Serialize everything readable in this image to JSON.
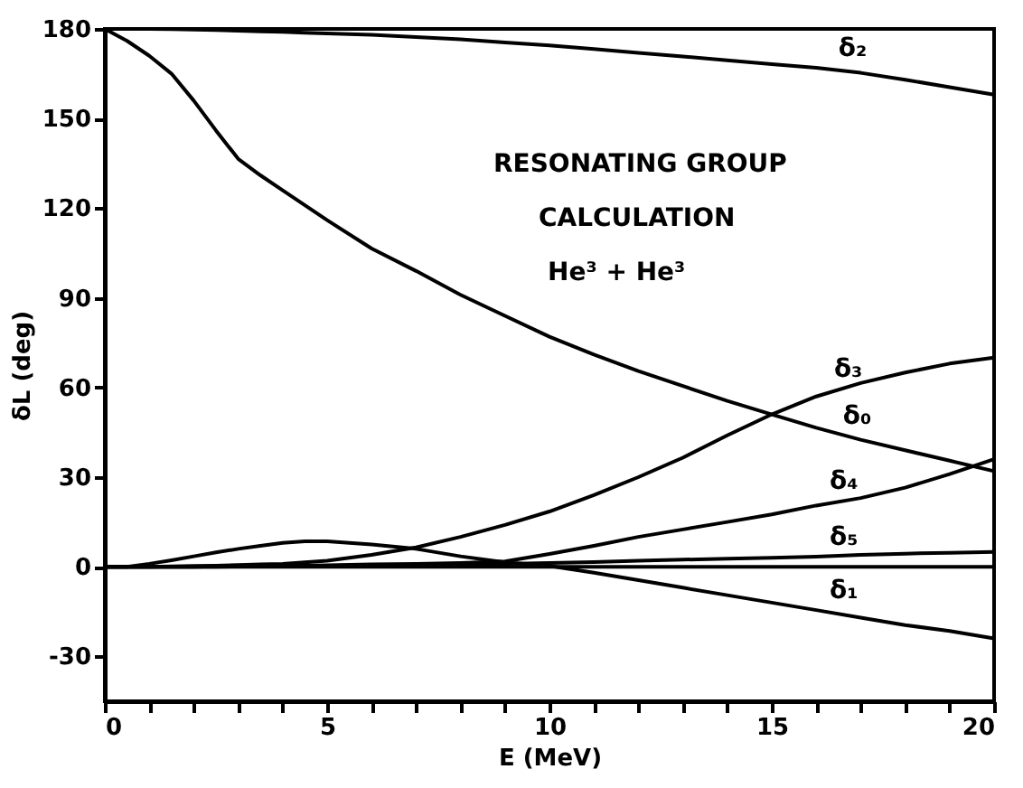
{
  "chart_data": {
    "type": "line",
    "xlabel": "E (MeV)",
    "ylabel": "δL (deg)",
    "annotations": [
      "RESONATING GROUP",
      "CALCULATION",
      "He³ + He³"
    ],
    "x": [
      0,
      0.5,
      1,
      1.5,
      2,
      2.5,
      3,
      3.5,
      4,
      4.5,
      5,
      6,
      7,
      8,
      9,
      10,
      11,
      12,
      13,
      14,
      15,
      16,
      17,
      18,
      19,
      20
    ],
    "series": [
      {
        "name": "δ₂",
        "color": "#000000",
        "values": [
          180,
          180,
          180,
          179.9,
          179.8,
          179.6,
          179.4,
          179.2,
          179,
          178.7,
          178.5,
          178,
          177.3,
          176.5,
          175.5,
          174.5,
          173.3,
          172,
          170.8,
          169.5,
          168.2,
          167,
          165.3,
          163,
          160.5,
          158
        ]
      },
      {
        "name": "δ₀",
        "color": "#000000",
        "values": [
          180,
          176,
          171,
          165,
          156,
          146,
          136.5,
          131,
          126,
          121,
          116,
          106.5,
          99,
          91,
          84,
          77,
          71,
          65.5,
          60.5,
          55.5,
          51,
          46.5,
          42.5,
          39,
          35.5,
          32
        ]
      },
      {
        "name": "δ₃",
        "color": "#000000",
        "values": [
          0,
          0,
          0,
          0.1,
          0.3,
          0.4,
          0.6,
          0.8,
          1,
          1.5,
          2,
          4,
          6.5,
          10,
          14,
          18.5,
          24,
          30,
          36.5,
          44,
          51,
          57,
          61.5,
          65,
          68,
          70
        ]
      },
      {
        "name": "δ₄",
        "color": "#000000",
        "values": [
          0,
          0,
          0,
          0,
          0,
          0.1,
          0.2,
          0.2,
          0.3,
          0.4,
          0.5,
          0.8,
          1,
          1.3,
          1.8,
          4.3,
          7,
          10,
          12.5,
          15,
          17.5,
          20.5,
          23,
          26.5,
          31,
          36
        ]
      },
      {
        "name": "δ₅",
        "color": "#000000",
        "values": [
          0,
          0,
          0,
          0,
          0,
          0,
          0.1,
          0.1,
          0.1,
          0.2,
          0.2,
          0.3,
          0.5,
          0.7,
          1,
          1.3,
          1.6,
          2,
          2.4,
          2.7,
          3,
          3.4,
          4,
          4.4,
          4.7,
          5
        ]
      },
      {
        "name": "δ₁",
        "color": "#000000",
        "values": [
          0,
          0,
          1,
          2.2,
          3.5,
          4.8,
          6,
          7,
          8,
          8.5,
          8.5,
          7.5,
          6,
          3.5,
          1.5,
          0.3,
          -2,
          -4.5,
          -7,
          -9.5,
          -12,
          -14.5,
          -17,
          -19.5,
          -21.5,
          -24
        ]
      }
    ],
    "xlim": [
      0,
      20
    ],
    "ylim": [
      -45,
      180
    ],
    "xticks": [
      0,
      {
        "value": 1,
        "label": null
      },
      {
        "value": 2,
        "label": null
      },
      {
        "value": 3,
        "label": null
      },
      {
        "value": 4,
        "label": null
      },
      5,
      {
        "value": 6,
        "label": null
      },
      {
        "value": 7,
        "label": null
      },
      {
        "value": 8,
        "label": null
      },
      {
        "value": 9,
        "label": null
      },
      10,
      {
        "value": 11,
        "label": null
      },
      {
        "value": 12,
        "label": null
      },
      {
        "value": 13,
        "label": null
      },
      {
        "value": 14,
        "label": null
      },
      15,
      {
        "value": 16,
        "label": null
      },
      {
        "value": 17,
        "label": null
      },
      {
        "value": 18,
        "label": null
      },
      {
        "value": 19,
        "label": null
      },
      20
    ],
    "yticks": [
      -30,
      0,
      30,
      60,
      90,
      120,
      150,
      180
    ],
    "ref_lines": [
      {
        "axis": "y",
        "value": 0,
        "color": "#000000"
      }
    ],
    "grid": false,
    "legend": false,
    "marker": "none",
    "line_style": "solid"
  }
}
